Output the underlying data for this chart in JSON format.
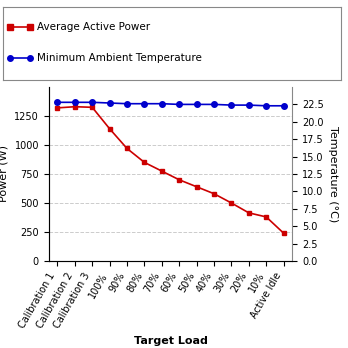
{
  "categories": [
    "Calibration 1",
    "Calibration 2",
    "Calibration 3",
    "100%",
    "90%",
    "80%",
    "70%",
    "60%",
    "50%",
    "40%",
    "30%",
    "20%",
    "10%",
    "Active Idle"
  ],
  "power_values": [
    1320,
    1330,
    1325,
    1140,
    970,
    850,
    775,
    700,
    640,
    580,
    500,
    415,
    380,
    240
  ],
  "temp_values": [
    22.8,
    22.8,
    22.8,
    22.7,
    22.6,
    22.6,
    22.6,
    22.5,
    22.5,
    22.5,
    22.4,
    22.4,
    22.3,
    22.3
  ],
  "power_color": "#cc0000",
  "temp_color": "#0000cc",
  "power_label": "Average Active Power",
  "temp_label": "Minimum Ambient Temperature",
  "xlabel": "Target Load",
  "ylabel_left": "Power (W)",
  "ylabel_right": "Temperature (°C)",
  "ylim_left": [
    0,
    1500
  ],
  "ylim_right": [
    0,
    25
  ],
  "yticks_left": [
    0,
    250,
    500,
    750,
    1000,
    1250
  ],
  "yticks_right": [
    0.0,
    2.5,
    5.0,
    7.5,
    10.0,
    12.5,
    15.0,
    17.5,
    20.0,
    22.5
  ],
  "background_color": "#ffffff",
  "grid_color": "#cccccc",
  "tick_fontsize": 7,
  "label_fontsize": 8,
  "legend_fontsize": 7.5
}
